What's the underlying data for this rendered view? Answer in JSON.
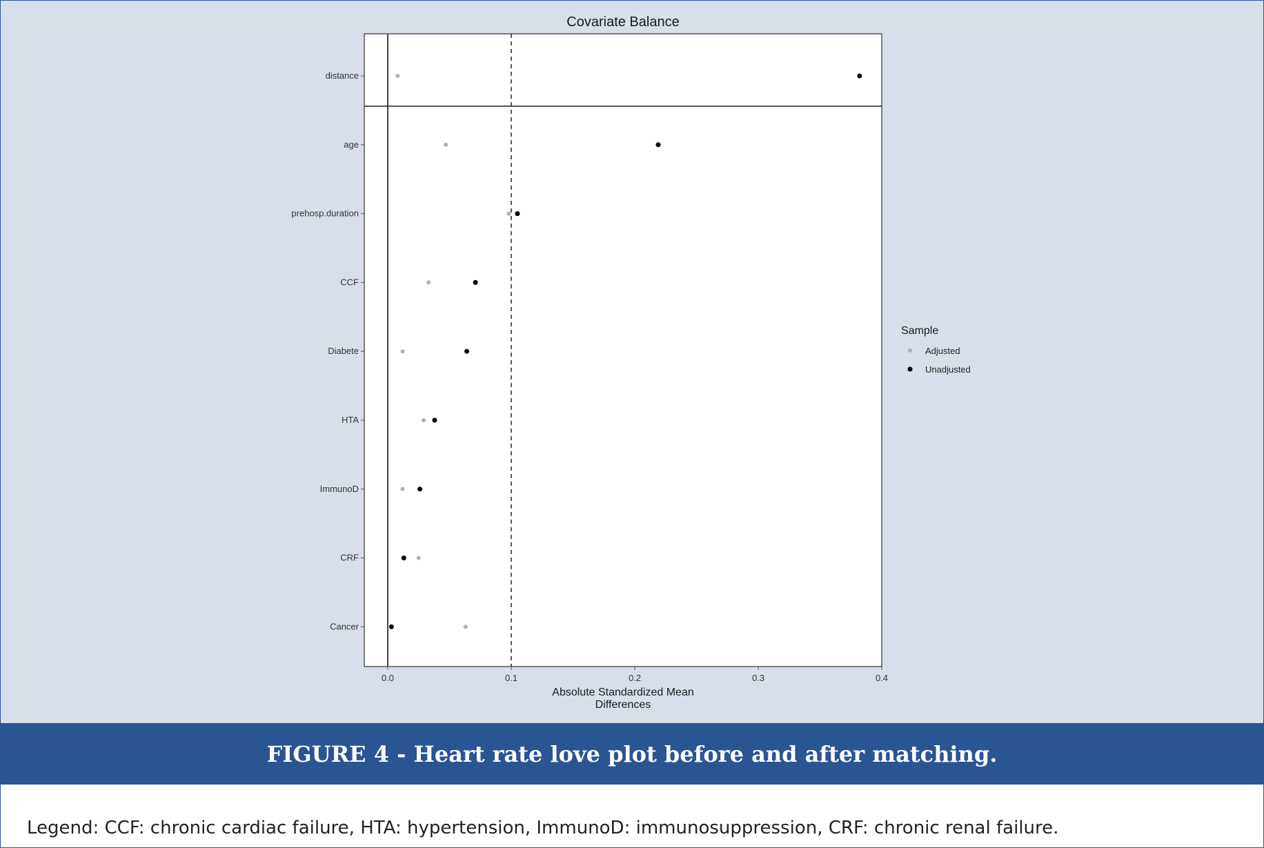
{
  "caption": "FIGURE 4 - Heart rate love plot before and after matching.",
  "footnote": "Legend: CCF: chronic cardiac failure, HTA: hypertension, ImmunoD: immunosuppression, CRF: chronic renal failure.",
  "colors": {
    "background": "#d8dfea",
    "caption_bar": "#2a5592",
    "adjusted": "#b0b0b0",
    "unadjusted": "#000000"
  },
  "chart_data": {
    "type": "scatter",
    "title": "Covariate Balance",
    "xlabel": "Absolute Standardized Mean Differences",
    "xlabel_lines": [
      "Absolute Standardized Mean",
      "Differences"
    ],
    "ylabel": "",
    "xlim": [
      -0.019,
      0.4
    ],
    "xticks": [
      0.0,
      0.1,
      0.2,
      0.3,
      0.4
    ],
    "xtick_labels": [
      "0.0",
      "0.1",
      "0.2",
      "0.3",
      "0.4"
    ],
    "threshold": 0.1,
    "categories": [
      "distance",
      "age",
      "prehosp.duration",
      "CCF",
      "Diabete",
      "HTA",
      "ImmunoD",
      "CRF",
      "Cancer"
    ],
    "separator_after": "distance",
    "legend_title": "Sample",
    "legend_position": "right",
    "series": [
      {
        "name": "Adjusted",
        "values": [
          0.008,
          0.047,
          0.098,
          0.033,
          0.012,
          0.029,
          0.012,
          0.025,
          0.063
        ]
      },
      {
        "name": "Unadjusted",
        "values": [
          0.382,
          0.219,
          0.105,
          0.071,
          0.064,
          0.038,
          0.026,
          0.013,
          0.003
        ]
      }
    ]
  }
}
